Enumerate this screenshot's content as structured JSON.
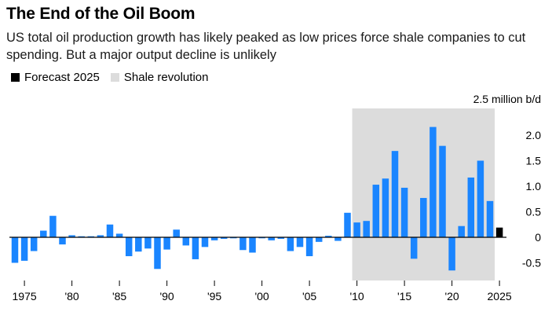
{
  "header": {
    "title": "The End of the Oil Boom",
    "subtitle": "US total oil production growth has likely peaked as low prices force shale companies to cut spending. But a major output decline is unlikely"
  },
  "legend": {
    "forecast_label": "Forecast 2025",
    "shale_label": "Shale revolution"
  },
  "colors": {
    "bar": "#1a85ff",
    "forecast": "#000000",
    "shade": "#dcdcdc",
    "zero_line": "#000000"
  },
  "chart_data": {
    "type": "bar",
    "title": "The End of the Oil Boom",
    "unit_label": "2.5 million b/d",
    "xlabel": "",
    "ylabel": "",
    "ylim": [
      -0.85,
      2.5
    ],
    "yticks": [
      {
        "value": 2.0,
        "label": "2.0"
      },
      {
        "value": 1.5,
        "label": "1.5"
      },
      {
        "value": 1.0,
        "label": "1.0"
      },
      {
        "value": 0.5,
        "label": "0.5"
      },
      {
        "value": 0,
        "label": "0"
      },
      {
        "value": -0.5,
        "label": "-0.5"
      }
    ],
    "xticks": [
      {
        "year": 1975,
        "label": "1975"
      },
      {
        "year": 1980,
        "label": "'80"
      },
      {
        "year": 1985,
        "label": "'85"
      },
      {
        "year": 1990,
        "label": "'90"
      },
      {
        "year": 1995,
        "label": "'95"
      },
      {
        "year": 2000,
        "label": "'00"
      },
      {
        "year": 2005,
        "label": "'05"
      },
      {
        "year": 2010,
        "label": "'10"
      },
      {
        "year": 2015,
        "label": "'15"
      },
      {
        "year": 2020,
        "label": "'20"
      },
      {
        "year": 2025,
        "label": "2025"
      }
    ],
    "shaded_range": {
      "name": "Shale revolution",
      "start": 2009.5,
      "end": 2024.5
    },
    "forecast_years": [
      2025
    ],
    "categories": [
      1974,
      1975,
      1976,
      1977,
      1978,
      1979,
      1980,
      1981,
      1982,
      1983,
      1984,
      1985,
      1986,
      1987,
      1988,
      1989,
      1990,
      1991,
      1992,
      1993,
      1994,
      1995,
      1996,
      1997,
      1998,
      1999,
      2000,
      2001,
      2002,
      2003,
      2004,
      2005,
      2006,
      2007,
      2008,
      2009,
      2010,
      2011,
      2012,
      2013,
      2014,
      2015,
      2016,
      2017,
      2018,
      2019,
      2020,
      2021,
      2022,
      2023,
      2024,
      2025
    ],
    "values": [
      -0.5,
      -0.46,
      -0.27,
      0.13,
      0.42,
      -0.14,
      0.04,
      0.02,
      0.02,
      0.04,
      0.25,
      0.07,
      -0.37,
      -0.28,
      -0.22,
      -0.62,
      -0.24,
      0.15,
      -0.16,
      -0.43,
      -0.19,
      -0.06,
      -0.03,
      -0.02,
      -0.25,
      -0.3,
      -0.02,
      -0.06,
      -0.03,
      -0.27,
      -0.19,
      -0.37,
      -0.09,
      0.03,
      -0.07,
      0.48,
      0.29,
      0.32,
      1.03,
      1.15,
      1.69,
      0.97,
      -0.42,
      0.77,
      2.16,
      1.79,
      -0.65,
      0.22,
      1.17,
      1.5,
      0.71,
      0.19
    ]
  }
}
